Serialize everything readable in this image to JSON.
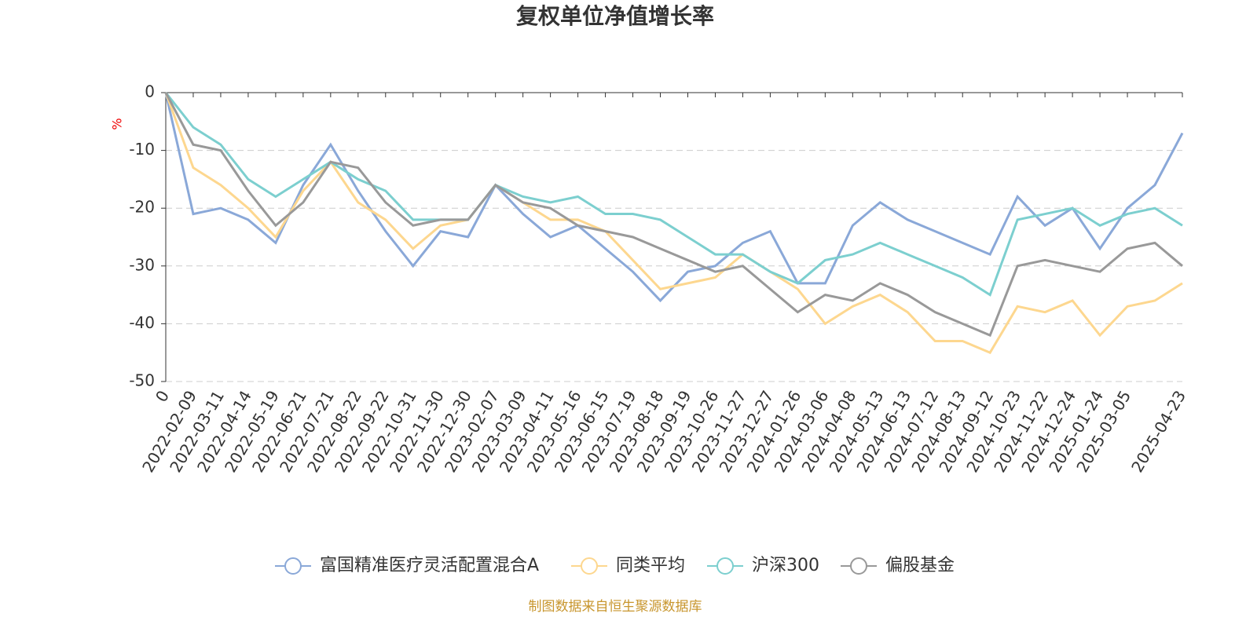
{
  "chart_data": {
    "type": "line",
    "title": "复权单位净值增长率",
    "y_label": "%",
    "categories": [
      "0",
      "2022-02-09",
      "2022-03-11",
      "2022-04-14",
      "2022-05-19",
      "2022-06-21",
      "2022-07-21",
      "2022-08-22",
      "2022-09-22",
      "2022-10-31",
      "2022-11-30",
      "2022-12-30",
      "2023-02-07",
      "2023-03-09",
      "2023-04-11",
      "2023-05-16",
      "2023-06-15",
      "2023-07-19",
      "2023-08-18",
      "2023-09-19",
      "2023-10-26",
      "2023-11-27",
      "2023-12-27",
      "2024-01-26",
      "2024-03-06",
      "2024-04-08",
      "2024-05-13",
      "2024-06-13",
      "2024-07-12",
      "2024-08-13",
      "2024-09-12",
      "2024-10-23",
      "2024-11-22",
      "2024-12-24",
      "2025-01-24",
      "2025-03-05",
      null,
      "2025-04-23"
    ],
    "series": [
      {
        "name": "富国精准医疗灵活配置混合A",
        "color": "#8aa8d8",
        "values": [
          0,
          -21,
          -20,
          -22,
          -26,
          -16,
          -9,
          -17,
          -24,
          -30,
          -24,
          -25,
          -16,
          -21,
          -25,
          -23,
          -27,
          -31,
          -36,
          -31,
          -30,
          -26,
          -24,
          -33,
          -33,
          -23,
          -19,
          -22,
          -24,
          -26,
          -28,
          -18,
          -23,
          -20,
          -27,
          -20,
          -16,
          -7
        ]
      },
      {
        "name": "同类平均",
        "color": "#fdd78f",
        "values": [
          0,
          -13,
          -16,
          -20,
          -25,
          -17,
          -12,
          -19,
          -22,
          -27,
          -23,
          -22,
          -16,
          -19,
          -22,
          -22,
          -24,
          -29,
          -34,
          -33,
          -32,
          -28,
          -31,
          -34,
          -40,
          -37,
          -35,
          -38,
          -43,
          -43,
          -45,
          -37,
          -38,
          -36,
          -42,
          -37,
          -36,
          -33
        ]
      },
      {
        "name": "沪深300",
        "color": "#7ccfcf",
        "values": [
          0,
          -6,
          -9,
          -15,
          -18,
          -15,
          -12,
          -15,
          -17,
          -22,
          -22,
          -22,
          -16,
          -18,
          -19,
          -18,
          -21,
          -21,
          -22,
          -25,
          -28,
          -28,
          -31,
          -33,
          -29,
          -28,
          -26,
          -28,
          -30,
          -32,
          -35,
          -22,
          -21,
          -20,
          -23,
          -21,
          -20,
          -23
        ]
      },
      {
        "name": "偏股基金",
        "color": "#999999",
        "values": [
          0,
          -9,
          -10,
          -17,
          -23,
          -19,
          -12,
          -13,
          -19,
          -23,
          -22,
          -22,
          -16,
          -19,
          -20,
          -23,
          -24,
          -25,
          -27,
          -29,
          -31,
          -30,
          -34,
          -38,
          -35,
          -36,
          -33,
          -35,
          -38,
          -40,
          -42,
          -30,
          -29,
          -30,
          -31,
          -27,
          -26,
          -30
        ]
      }
    ],
    "ylim": [
      -50,
      0
    ],
    "yticks": [
      0,
      -10,
      -20,
      -30,
      -40,
      -50
    ],
    "grid": true,
    "source": "制图数据来自恒生聚源数据库"
  }
}
